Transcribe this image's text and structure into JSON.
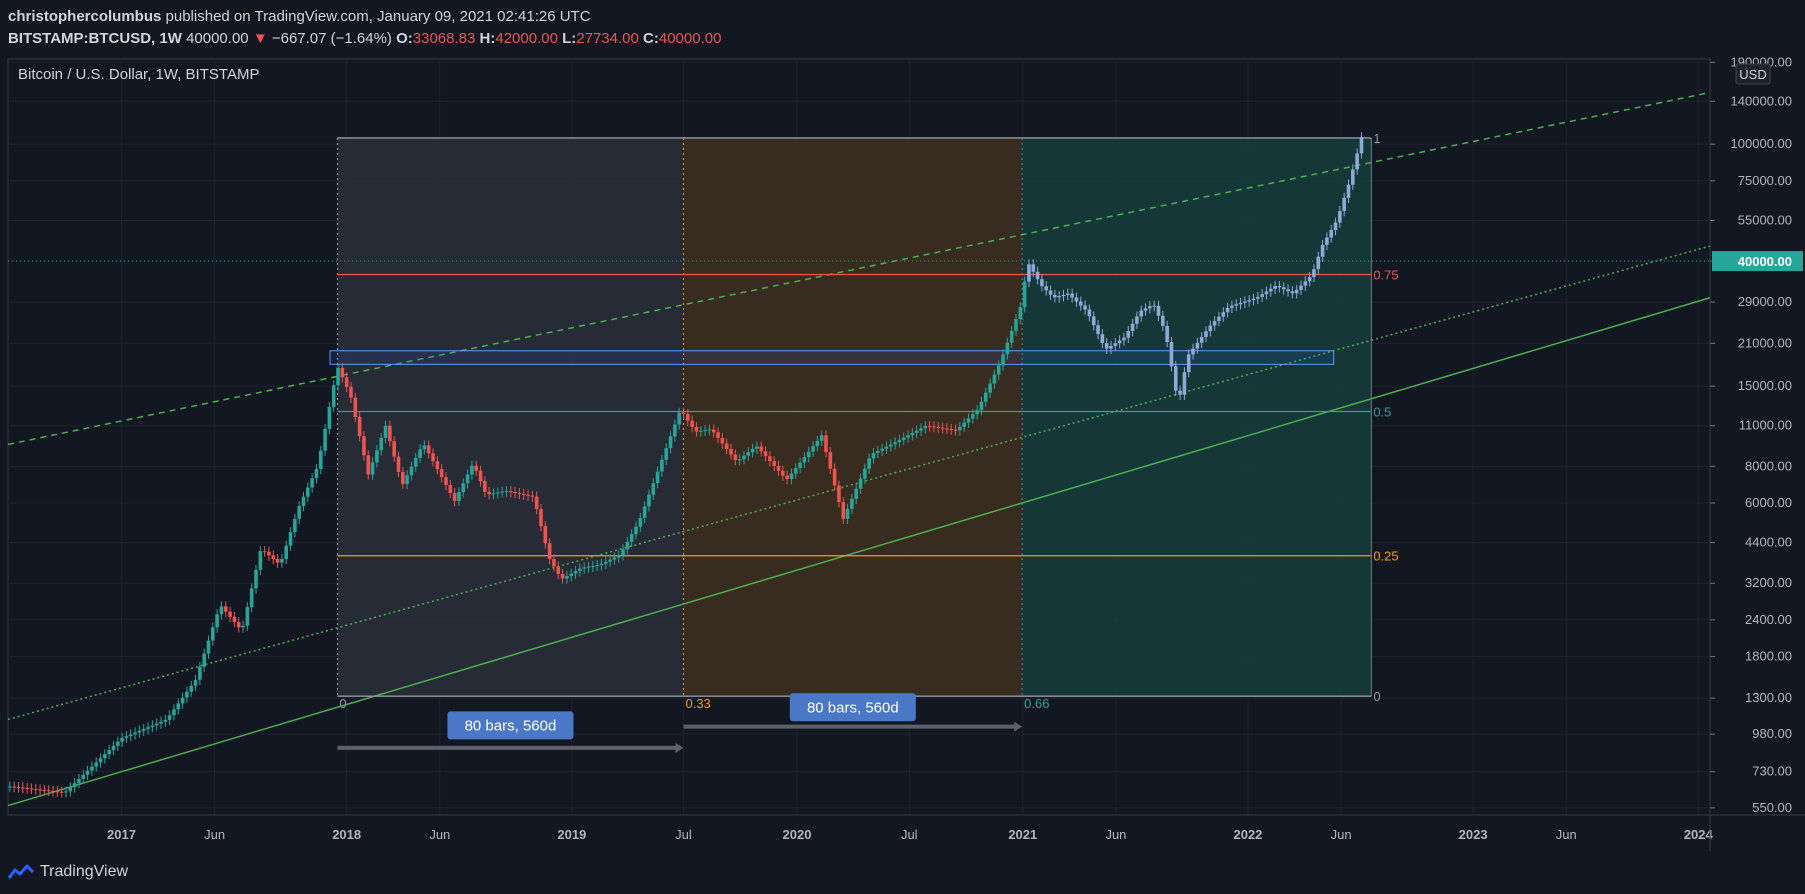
{
  "header": {
    "author": "christophercolumbus",
    "published_text": "published on TradingView.com, January 09, 2021 02:41:26 UTC",
    "symbol": "BITSTAMP:BTCUSD, 1W",
    "last": "40000.00",
    "change_arrow": "▼",
    "change": "−667.07 (−1.64%)",
    "o_label": "O:",
    "o_value": "33068.83",
    "h_label": "H:",
    "h_value": "42000.00",
    "l_label": "L:",
    "l_value": "27734.00",
    "c_label": "C:",
    "c_value": "40000.00"
  },
  "footer": {
    "brand": "TradingView",
    "logo_icon": "tradingview-logo-icon"
  },
  "chart_data": {
    "type": "candlestick",
    "title": "Bitcoin / U.S. Dollar, 1W, BITSTAMP",
    "currency": "USD",
    "scale": "log",
    "last_price_label": "40000.00",
    "y_ticks": [
      190000,
      140000,
      100000,
      75000,
      55000,
      40000,
      29000,
      21000,
      15000,
      11000,
      8000,
      6000,
      4400,
      3200,
      2400,
      1800,
      1300,
      980,
      730,
      550
    ],
    "y_tick_labels": [
      "190000.00",
      "140000.00",
      "100000.00",
      "75000.00",
      "55000.00",
      "40000.00",
      "29000.00",
      "21000.00",
      "15000.00",
      "11000.00",
      "8000.00",
      "6000.00",
      "4400.00",
      "3200.00",
      "2400.00",
      "1800.00",
      "1300.00",
      "980.00",
      "730.00",
      "550.00"
    ],
    "x_ticks": [
      {
        "label": "2017",
        "date": "2017-01-01",
        "bold": true
      },
      {
        "label": "Jun",
        "date": "2017-06-01",
        "bold": false
      },
      {
        "label": "2018",
        "date": "2018-01-01",
        "bold": true
      },
      {
        "label": "Jun",
        "date": "2018-06-01",
        "bold": false
      },
      {
        "label": "2019",
        "date": "2019-01-01",
        "bold": true
      },
      {
        "label": "Jul",
        "date": "2019-07-01",
        "bold": false
      },
      {
        "label": "2020",
        "date": "2020-01-01",
        "bold": true
      },
      {
        "label": "Jul",
        "date": "2020-07-01",
        "bold": false
      },
      {
        "label": "2021",
        "date": "2021-01-01",
        "bold": true
      },
      {
        "label": "Jun",
        "date": "2021-06-01",
        "bold": false
      },
      {
        "label": "2022",
        "date": "2022-01-01",
        "bold": true
      },
      {
        "label": "Jun",
        "date": "2022-06-01",
        "bold": false
      },
      {
        "label": "2023",
        "date": "2023-01-01",
        "bold": true
      },
      {
        "label": "Jun",
        "date": "2023-06-01",
        "bold": false
      },
      {
        "label": "2024",
        "date": "2024-01-01",
        "bold": true
      }
    ],
    "x_range": [
      "2016-07-01",
      "2024-01-20"
    ],
    "y_range": [
      520,
      195000
    ],
    "fib_time_zones": [
      {
        "start": "2017-12-17",
        "end": "2019-07-01",
        "label": "0",
        "color": "#9598a1",
        "fill": "#2a2e39"
      },
      {
        "start": "2019-07-01",
        "end": "2020-12-31",
        "label": "0.33",
        "color": "#ff9800",
        "fill": "#3d2e1f"
      },
      {
        "start": "2020-12-31",
        "end": "2022-07-20",
        "label": "0.66",
        "color": "#26a69a",
        "fill": "#163b3b"
      }
    ],
    "fib_box_top": 105000,
    "fib_box_bottom": 1320,
    "fib_levels": [
      {
        "label": "1",
        "price": 105000,
        "color": "#9598a1",
        "from": "2017-12-17",
        "to": "2022-07-20"
      },
      {
        "label": "0.75",
        "price": 36000,
        "color": "#ef5350",
        "from": "2017-12-17",
        "to": "2022-07-20"
      },
      {
        "label": "0.5",
        "price": 12300,
        "color": "#26a69a",
        "from": "2017-12-17",
        "to": "2022-07-20"
      },
      {
        "label": "0.25",
        "price": 3970,
        "color": "#ff9800",
        "from": "2017-12-17",
        "to": "2022-07-20"
      },
      {
        "label": "0",
        "price": 1320,
        "color": "#9598a1",
        "from": "2017-12-17",
        "to": "2022-07-20"
      }
    ],
    "range_measures": [
      {
        "label": "80 bars, 560d",
        "from": "2017-12-17",
        "to": "2019-07-01",
        "price": 880,
        "label_price": 1050
      },
      {
        "label": "80 bars, 560d",
        "from": "2019-07-01",
        "to": "2020-12-31",
        "price": 1040,
        "label_price": 1210
      }
    ],
    "resistance_box": {
      "from": "2017-12-05",
      "to": "2022-05-20",
      "high": 19800,
      "low": 17800
    },
    "trendlines": [
      {
        "kind": "dashed",
        "color": "#4caf50",
        "p1": [
          "2016-07-01",
          9500
        ],
        "p2": [
          "2024-01-20",
          150000
        ]
      },
      {
        "kind": "dotted",
        "color": "#4caf50",
        "p1": [
          "2016-07-01",
          1100
        ],
        "p2": [
          "2024-01-20",
          45000
        ]
      },
      {
        "kind": "solid",
        "color": "#4caf50",
        "p1": [
          "2016-07-01",
          560
        ],
        "p2": [
          "2024-01-20",
          30000
        ]
      }
    ],
    "price_path": [
      [
        "2016-07-04",
        650
      ],
      [
        "2016-10-01",
        620
      ],
      [
        "2017-01-01",
        950
      ],
      [
        "2017-03-15",
        1100
      ],
      [
        "2017-05-01",
        1500
      ],
      [
        "2017-06-10",
        2700
      ],
      [
        "2017-07-15",
        2200
      ],
      [
        "2017-08-15",
        4200
      ],
      [
        "2017-09-15",
        3700
      ],
      [
        "2017-10-15",
        5800
      ],
      [
        "2017-11-15",
        8000
      ],
      [
        "2017-12-17",
        17500
      ],
      [
        "2018-01-07",
        14000
      ],
      [
        "2018-02-05",
        7500
      ],
      [
        "2018-03-05",
        11000
      ],
      [
        "2018-04-01",
        6900
      ],
      [
        "2018-05-05",
        9600
      ],
      [
        "2018-06-25",
        6100
      ],
      [
        "2018-07-25",
        8200
      ],
      [
        "2018-08-15",
        6400
      ],
      [
        "2018-09-15",
        6600
      ],
      [
        "2018-10-31",
        6300
      ],
      [
        "2018-11-25",
        3900
      ],
      [
        "2018-12-15",
        3300
      ],
      [
        "2019-01-15",
        3600
      ],
      [
        "2019-02-15",
        3700
      ],
      [
        "2019-03-20",
        4000
      ],
      [
        "2019-04-20",
        5200
      ],
      [
        "2019-05-25",
        8200
      ],
      [
        "2019-06-26",
        12500
      ],
      [
        "2019-07-20",
        10500
      ],
      [
        "2019-08-15",
        10700
      ],
      [
        "2019-09-25",
        8300
      ],
      [
        "2019-10-27",
        9400
      ],
      [
        "2019-12-15",
        7200
      ],
      [
        "2020-02-10",
        10200
      ],
      [
        "2020-03-16",
        5300
      ],
      [
        "2020-04-30",
        8800
      ],
      [
        "2020-06-01",
        9500
      ],
      [
        "2020-07-28",
        11000
      ],
      [
        "2020-09-15",
        10600
      ],
      [
        "2020-10-20",
        12500
      ],
      [
        "2020-11-25",
        18000
      ],
      [
        "2020-12-31",
        29000
      ],
      [
        "2021-01-08",
        40000
      ],
      [
        "2021-01-31",
        33000
      ],
      [
        "2021-02-20",
        30000
      ],
      [
        "2021-03-15",
        31000
      ],
      [
        "2021-04-15",
        27000
      ],
      [
        "2021-05-15",
        20000
      ],
      [
        "2021-06-15",
        22000
      ],
      [
        "2021-07-10",
        27000
      ],
      [
        "2021-08-01",
        28500
      ],
      [
        "2021-08-20",
        23000
      ],
      [
        "2021-09-10",
        13000
      ],
      [
        "2021-09-25",
        19000
      ],
      [
        "2021-10-31",
        24000
      ],
      [
        "2021-12-01",
        28000
      ],
      [
        "2022-01-15",
        30000
      ],
      [
        "2022-02-15",
        33000
      ],
      [
        "2022-03-15",
        31000
      ],
      [
        "2022-04-15",
        36000
      ],
      [
        "2022-05-01",
        45000
      ],
      [
        "2022-05-25",
        55000
      ],
      [
        "2022-06-15",
        75000
      ],
      [
        "2022-07-01",
        100000
      ],
      [
        "2022-07-10",
        118000
      ]
    ]
  }
}
